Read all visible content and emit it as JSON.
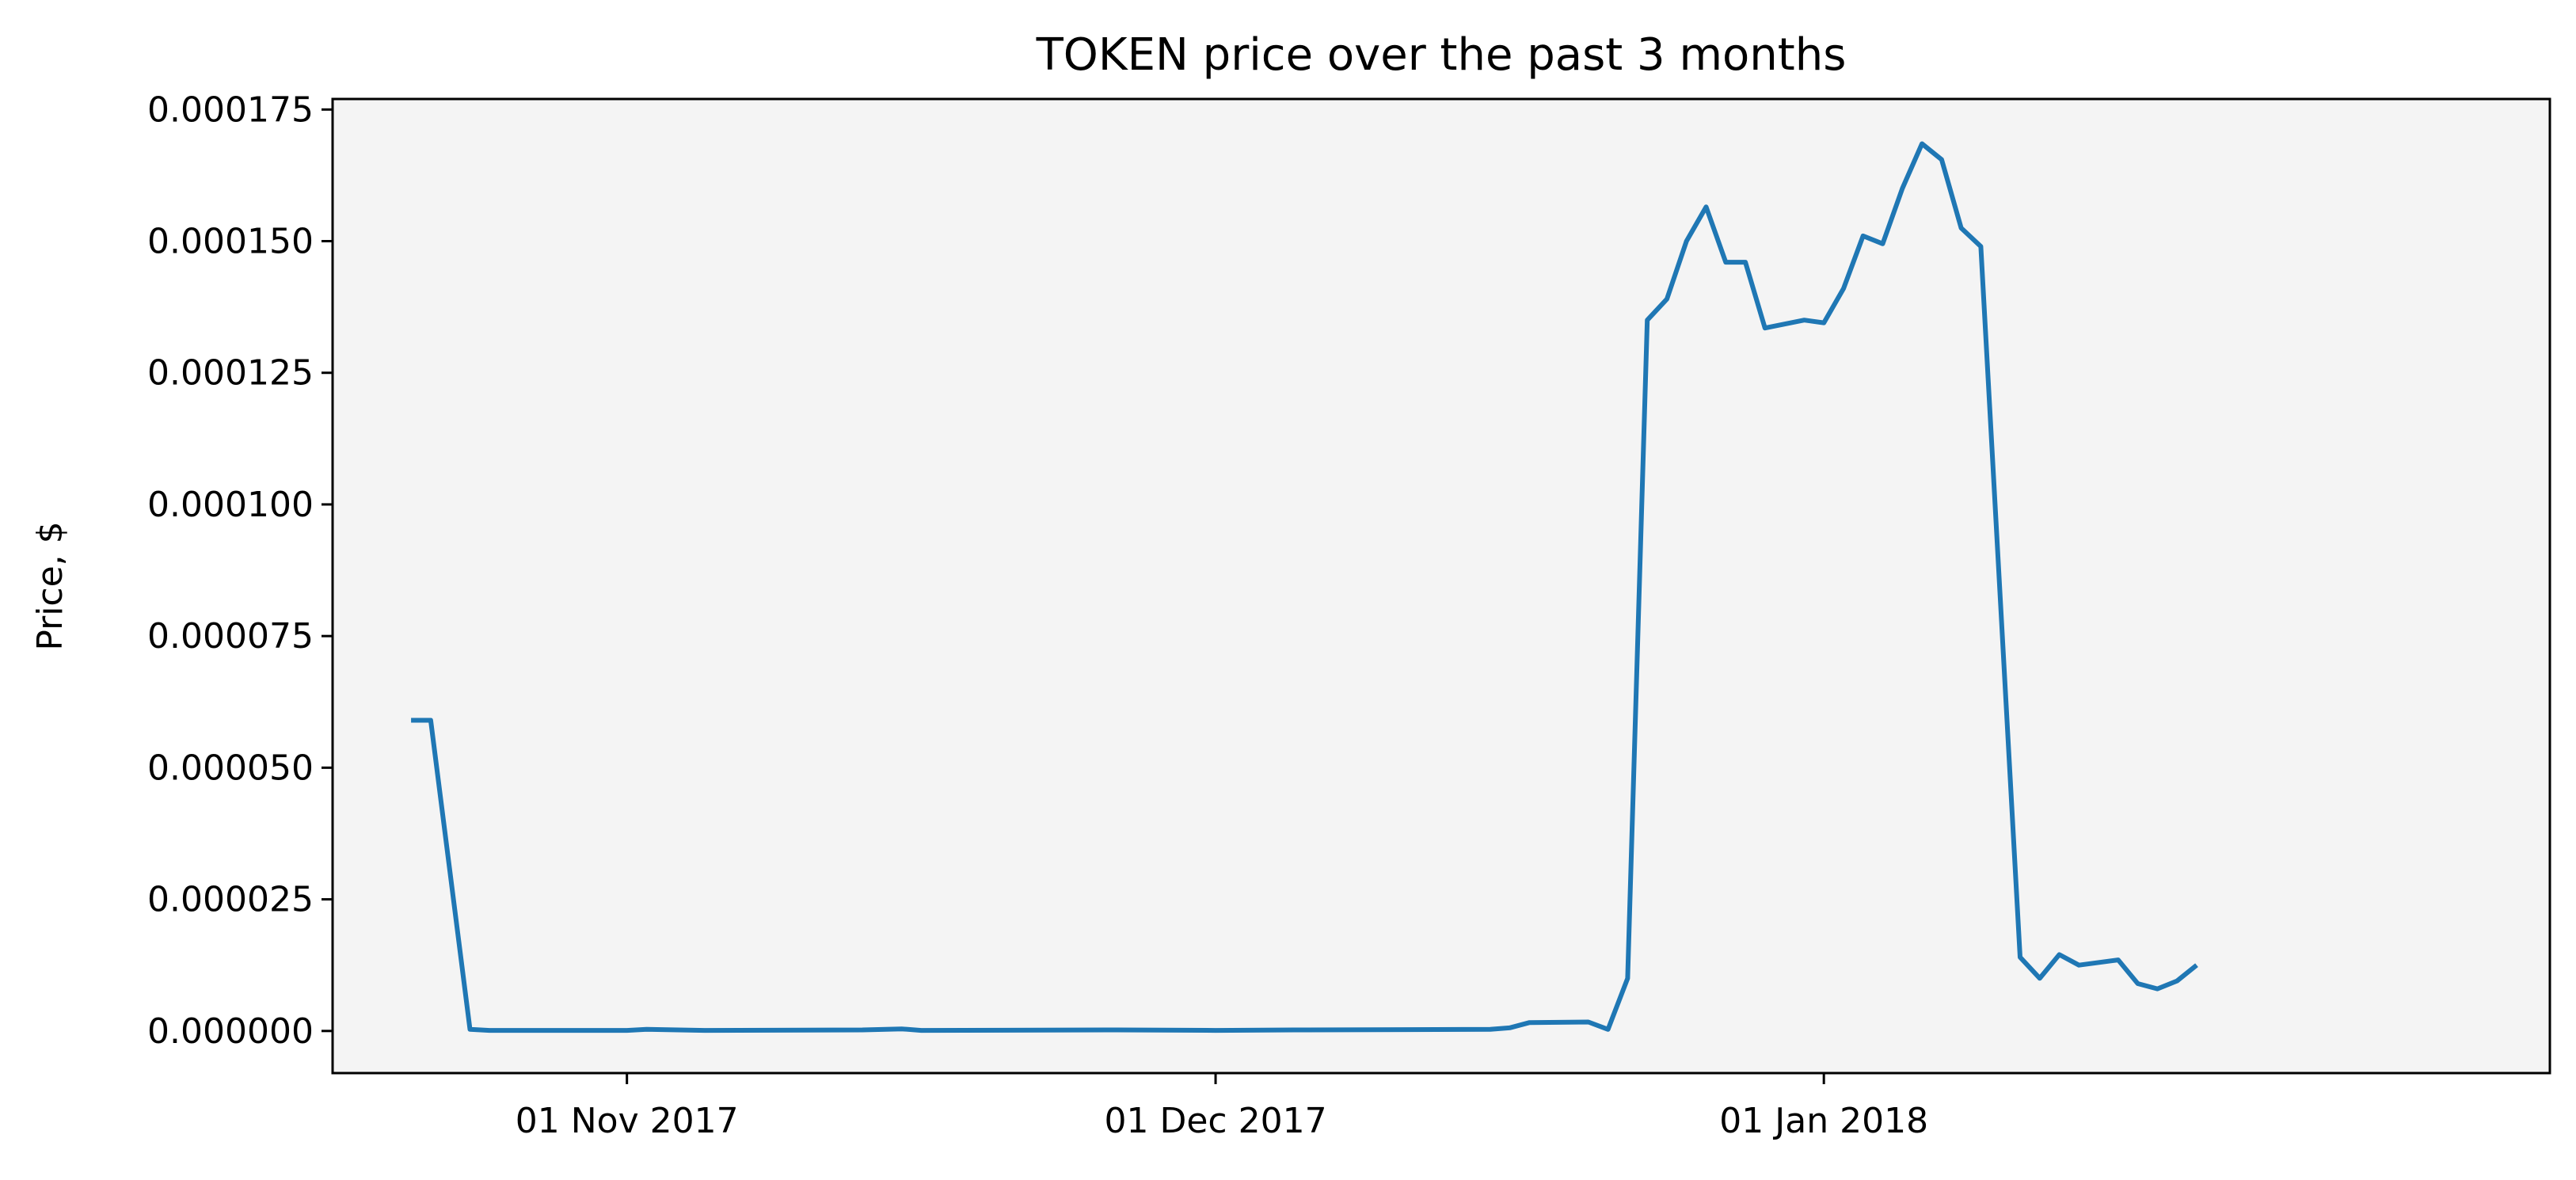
{
  "chart_data": {
    "type": "line",
    "title": "TOKEN price over the past 3 months",
    "xlabel": "",
    "ylabel": "Price, $",
    "xlim": [
      "2017-10-17",
      "2018-02-07"
    ],
    "ylim": [
      -8e-06,
      0.000177
    ],
    "grid": false,
    "legend": "none",
    "background_color": "#f4f4f4",
    "line_color": "#1f77b4",
    "x_ticks": [
      {
        "date": "2017-11-01",
        "label": "01 Nov 2017"
      },
      {
        "date": "2017-12-01",
        "label": "01 Dec 2017"
      },
      {
        "date": "2018-01-01",
        "label": "01 Jan 2018"
      }
    ],
    "y_ticks": [
      {
        "value": 0.0,
        "label": "0.000000"
      },
      {
        "value": 2.5e-05,
        "label": "0.000025"
      },
      {
        "value": 5e-05,
        "label": "0.000050"
      },
      {
        "value": 7.5e-05,
        "label": "0.000075"
      },
      {
        "value": 0.0001,
        "label": "0.000100"
      },
      {
        "value": 0.000125,
        "label": "0.000125"
      },
      {
        "value": 0.00015,
        "label": "0.000150"
      },
      {
        "value": 0.000175,
        "label": "0.000175"
      }
    ],
    "series": [
      {
        "name": "",
        "points": [
          [
            "2017-10-21",
            5.9e-05
          ],
          [
            "2017-10-22",
            5.9e-05
          ],
          [
            "2017-10-24",
            3e-07
          ],
          [
            "2017-10-25",
            1e-07
          ],
          [
            "2017-11-01",
            1e-07
          ],
          [
            "2017-11-02",
            3e-07
          ],
          [
            "2017-11-05",
            1e-07
          ],
          [
            "2017-11-13",
            2e-07
          ],
          [
            "2017-11-15",
            4e-07
          ],
          [
            "2017-11-16",
            1e-07
          ],
          [
            "2017-11-26",
            2e-07
          ],
          [
            "2017-12-01",
            1e-07
          ],
          [
            "2017-12-05",
            2e-07
          ],
          [
            "2017-12-15",
            3e-07
          ],
          [
            "2017-12-16",
            6e-07
          ],
          [
            "2017-12-17",
            1.6e-06
          ],
          [
            "2017-12-20",
            1.7e-06
          ],
          [
            "2017-12-21",
            3e-07
          ],
          [
            "2017-12-22",
            1e-05
          ],
          [
            "2017-12-23",
            0.000135
          ],
          [
            "2017-12-24",
            0.000139
          ],
          [
            "2017-12-25",
            0.00015
          ],
          [
            "2017-12-26",
            0.0001565
          ],
          [
            "2017-12-27",
            0.000146
          ],
          [
            "2017-12-28",
            0.000146
          ],
          [
            "2017-12-29",
            0.0001335
          ],
          [
            "2017-12-31",
            0.000135
          ],
          [
            "2018-01-01",
            0.0001345
          ],
          [
            "2018-01-02",
            0.000141
          ],
          [
            "2018-01-03",
            0.000151
          ],
          [
            "2018-01-04",
            0.0001495
          ],
          [
            "2018-01-05",
            0.00016
          ],
          [
            "2018-01-06",
            0.0001685
          ],
          [
            "2018-01-07",
            0.0001655
          ],
          [
            "2018-01-08",
            0.0001525
          ],
          [
            "2018-01-09",
            0.000149
          ],
          [
            "2018-01-11",
            1.4e-05
          ],
          [
            "2018-01-12",
            1e-05
          ],
          [
            "2018-01-13",
            1.45e-05
          ],
          [
            "2018-01-14",
            1.25e-05
          ],
          [
            "2018-01-16",
            1.35e-05
          ],
          [
            "2018-01-17",
            9e-06
          ],
          [
            "2018-01-18",
            8e-06
          ],
          [
            "2018-01-19",
            9.5e-06
          ],
          [
            "2018-01-20",
            1.25e-05
          ]
        ]
      }
    ]
  }
}
